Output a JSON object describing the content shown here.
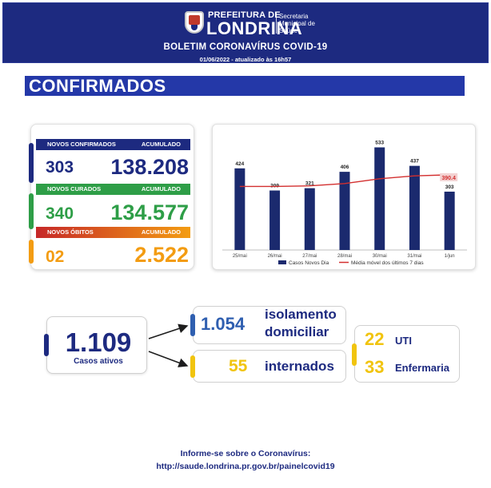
{
  "header": {
    "logo_line1": "PREFEITURA DE",
    "logo_line2": "LONDRINA",
    "logo_line3": "Secretaria Municipal de Saúde",
    "title": "BOLETIM CORONAVÍRUS COVID-19",
    "updated": "01/06/2022 - atualizado às 16h57"
  },
  "section": {
    "title": "CONFIRMADOS"
  },
  "stats": {
    "confirmados": {
      "label": "NOVOS CONFIRMADOS",
      "acc_label": "ACUMULADO",
      "new": "303",
      "acc": "138.208"
    },
    "curados": {
      "label": "NOVOS CURADOS",
      "acc_label": "ACUMULADO",
      "new": "340",
      "acc": "134.577"
    },
    "obitos": {
      "label": "NOVOS ÓBITOS",
      "acc_label": "ACUMULADO",
      "new": "02",
      "acc": "2.522"
    }
  },
  "active": {
    "total": "1.109",
    "total_label": "Casos ativos",
    "isolamento_num": "1.054",
    "isolamento_l1": "isolamento",
    "isolamento_l2": "domiciliar",
    "internados_num": "55",
    "internados_label": "internados",
    "uti_num": "22",
    "uti_label": "UTI",
    "enfermaria_num": "33",
    "enfermaria_label": "Enfermaria"
  },
  "footer": {
    "line1": "Informe-se sobre o Coronavírus:",
    "line2": "http://saude.londrina.pr.gov.br/painelcovid19"
  },
  "colors": {
    "navy": "#1d2a80",
    "bar": "#1b2a6e",
    "line": "#d32f2f",
    "green": "#2e9e47",
    "orange": "#f39c12",
    "yellow": "#f1c40f"
  },
  "chart_data": {
    "type": "bar",
    "categories": [
      "25/mai",
      "26/mai",
      "27/mai",
      "28/mai",
      "30/mai",
      "31/mai",
      "1/jun"
    ],
    "series": [
      {
        "name": "Casos Novos Dia",
        "type": "bar",
        "values": [
          424,
          309,
          321,
          406,
          533,
          437,
          303
        ]
      },
      {
        "name": "Média móvel dos últimos 7 dias",
        "type": "line",
        "values": [
          330,
          330,
          333,
          345,
          370,
          385,
          390.4
        ]
      }
    ],
    "highlight_label": "390.4",
    "ylim": [
      0,
      560
    ],
    "legend": "bottom"
  }
}
